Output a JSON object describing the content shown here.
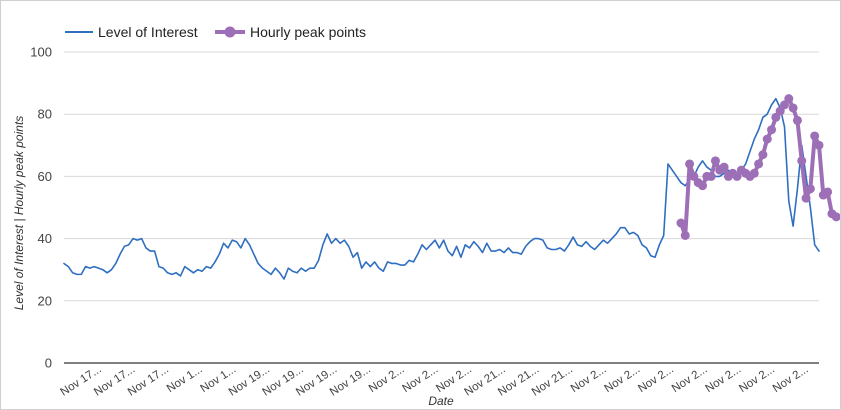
{
  "chart_data": {
    "type": "line",
    "title": "",
    "xlabel": "Date",
    "ylabel": "Level of Interest | Hourly peak points",
    "ylim": [
      0,
      100
    ],
    "yticks": [
      0,
      20,
      40,
      60,
      80,
      100
    ],
    "grid": true,
    "legend": "top-left",
    "xticks": [
      "Nov 17...",
      "Nov 17...",
      "Nov 17...",
      "Nov 1...",
      "Nov 1...",
      "Nov 19...",
      "Nov 19...",
      "Nov 19...",
      "Nov 19...",
      "Nov 2...",
      "Nov 2...",
      "Nov 2...",
      "Nov 21...",
      "Nov 21...",
      "Nov 21...",
      "Nov 2...",
      "Nov 2...",
      "Nov 2...",
      "Nov 2...",
      "Nov 2...",
      "Nov 2...",
      "Nov 2..."
    ],
    "series": [
      {
        "name": "Level of Interest",
        "color": "#2f6fc1",
        "values": [
          32,
          31,
          29,
          28.5,
          28.5,
          31,
          30.5,
          31,
          30.5,
          30,
          29,
          30,
          32,
          35,
          37.5,
          38,
          40,
          39.5,
          40,
          37,
          36,
          36,
          31,
          30.5,
          29,
          28.5,
          29,
          28,
          31,
          30,
          29,
          30,
          29.5,
          31,
          30.5,
          32.5,
          35,
          38.5,
          37,
          39.5,
          39,
          37,
          40,
          38,
          35,
          32,
          30.5,
          29.5,
          28.5,
          30.5,
          29,
          27,
          30.5,
          29.5,
          29,
          30.5,
          29.5,
          30.5,
          30.5,
          33,
          38,
          41.5,
          38.5,
          40,
          38.5,
          39.5,
          37.5,
          34,
          35.5,
          30.5,
          32.5,
          31,
          32.5,
          30.5,
          29.5,
          32.5,
          32,
          32,
          31.5,
          31.5,
          33,
          32.5,
          35,
          38,
          36.5,
          38,
          39.5,
          37,
          39.5,
          36,
          34.5,
          37.5,
          34,
          38,
          37,
          39,
          37.5,
          35.5,
          38.5,
          36,
          36,
          36.5,
          35.5,
          37,
          35.5,
          35.5,
          35,
          37.5,
          39,
          40,
          40,
          39.5,
          37,
          36.5,
          36.5,
          37,
          36,
          38,
          40.5,
          38,
          37.5,
          39,
          37.5,
          36.5,
          38,
          39.5,
          38.5,
          40,
          41.5,
          43.5,
          43.5,
          41.5,
          42,
          41,
          38,
          37,
          34.5,
          34,
          38,
          41,
          64,
          62,
          60,
          58,
          57,
          59,
          60,
          63,
          65,
          63,
          62,
          60,
          60,
          61,
          62,
          60,
          60,
          62,
          64,
          68,
          72,
          75,
          79,
          80,
          83,
          85,
          82,
          76,
          52,
          44,
          56,
          70,
          60,
          50,
          38,
          36
        ]
      },
      {
        "name": "Hourly peak points",
        "color": "#9d6fb7",
        "start_index": 143,
        "values": [
          45,
          41,
          64,
          60,
          58,
          57,
          60,
          60,
          65,
          62,
          63,
          60,
          61,
          60,
          62,
          61,
          60,
          61,
          64,
          67,
          72,
          75,
          79,
          81,
          83,
          85,
          82,
          78,
          65,
          53,
          56,
          73,
          70,
          54,
          55,
          48,
          47
        ]
      }
    ]
  }
}
